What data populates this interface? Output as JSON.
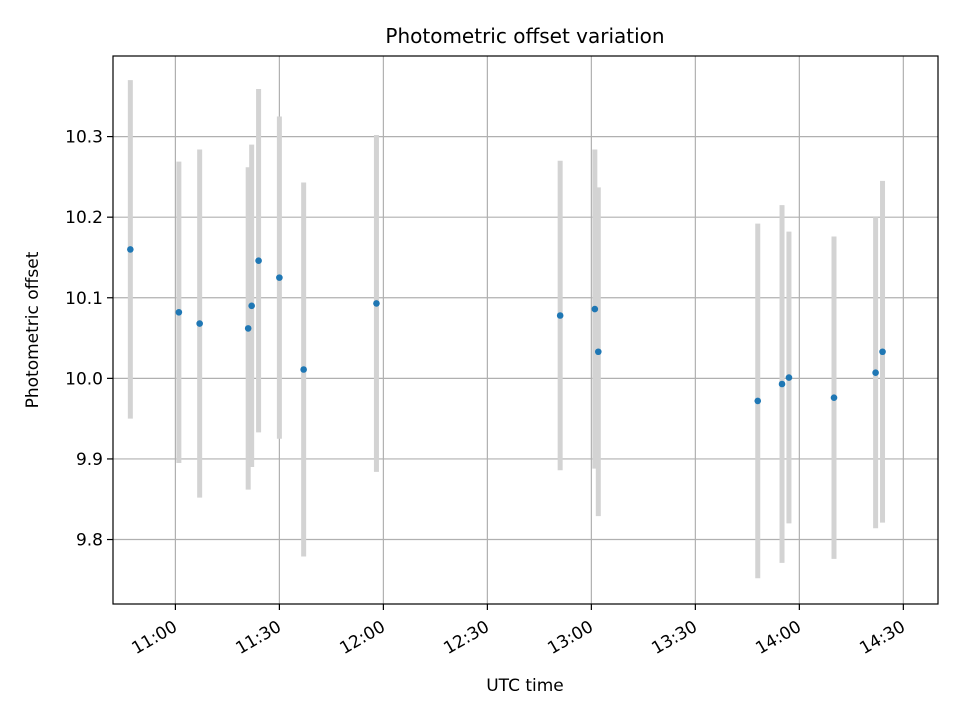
{
  "chart_data": {
    "type": "scatter",
    "title": "Photometric offset variation",
    "xlabel": "UTC time",
    "ylabel": "Photometric offset",
    "x_unit": "UTC time (HH:MM)",
    "xlim": [
      "10:42",
      "14:40"
    ],
    "ylim": [
      9.72,
      10.4
    ],
    "x_ticks": [
      "11:00",
      "11:30",
      "12:00",
      "12:30",
      "13:00",
      "13:30",
      "14:00",
      "14:30"
    ],
    "y_ticks": [
      9.8,
      9.9,
      10.0,
      10.1,
      10.2,
      10.3
    ],
    "y_tick_labels": [
      "9.8",
      "9.9",
      "10.0",
      "10.1",
      "10.2",
      "10.3"
    ],
    "grid": true,
    "colors": {
      "point": "#1f77b4",
      "errorbar": "#d3d3d3",
      "grid": "#b0b0b0"
    },
    "series": [
      {
        "points": [
          {
            "t": "10:47",
            "y": 10.16,
            "err": 0.21
          },
          {
            "t": "11:01",
            "y": 10.082,
            "err": 0.187
          },
          {
            "t": "11:07",
            "y": 10.068,
            "err": 0.216
          },
          {
            "t": "11:21",
            "y": 10.062,
            "err": 0.2
          },
          {
            "t": "11:22",
            "y": 10.09,
            "err": 0.2
          },
          {
            "t": "11:24",
            "y": 10.146,
            "err": 0.213
          },
          {
            "t": "11:30",
            "y": 10.125,
            "err": 0.2
          },
          {
            "t": "11:37",
            "y": 10.011,
            "err": 0.232
          },
          {
            "t": "11:58",
            "y": 10.093,
            "err": 0.209
          },
          {
            "t": "12:51",
            "y": 10.078,
            "err": 0.192
          },
          {
            "t": "13:01",
            "y": 10.086,
            "err": 0.198
          },
          {
            "t": "13:02",
            "y": 10.033,
            "err": 0.204
          },
          {
            "t": "13:48",
            "y": 9.972,
            "err": 0.22
          },
          {
            "t": "13:55",
            "y": 9.993,
            "err": 0.222
          },
          {
            "t": "13:57",
            "y": 10.001,
            "err": 0.181
          },
          {
            "t": "14:10",
            "y": 9.976,
            "err": 0.2
          },
          {
            "t": "14:22",
            "y": 10.007,
            "err": 0.193
          },
          {
            "t": "14:24",
            "y": 10.033,
            "err": 0.212
          }
        ]
      }
    ]
  }
}
